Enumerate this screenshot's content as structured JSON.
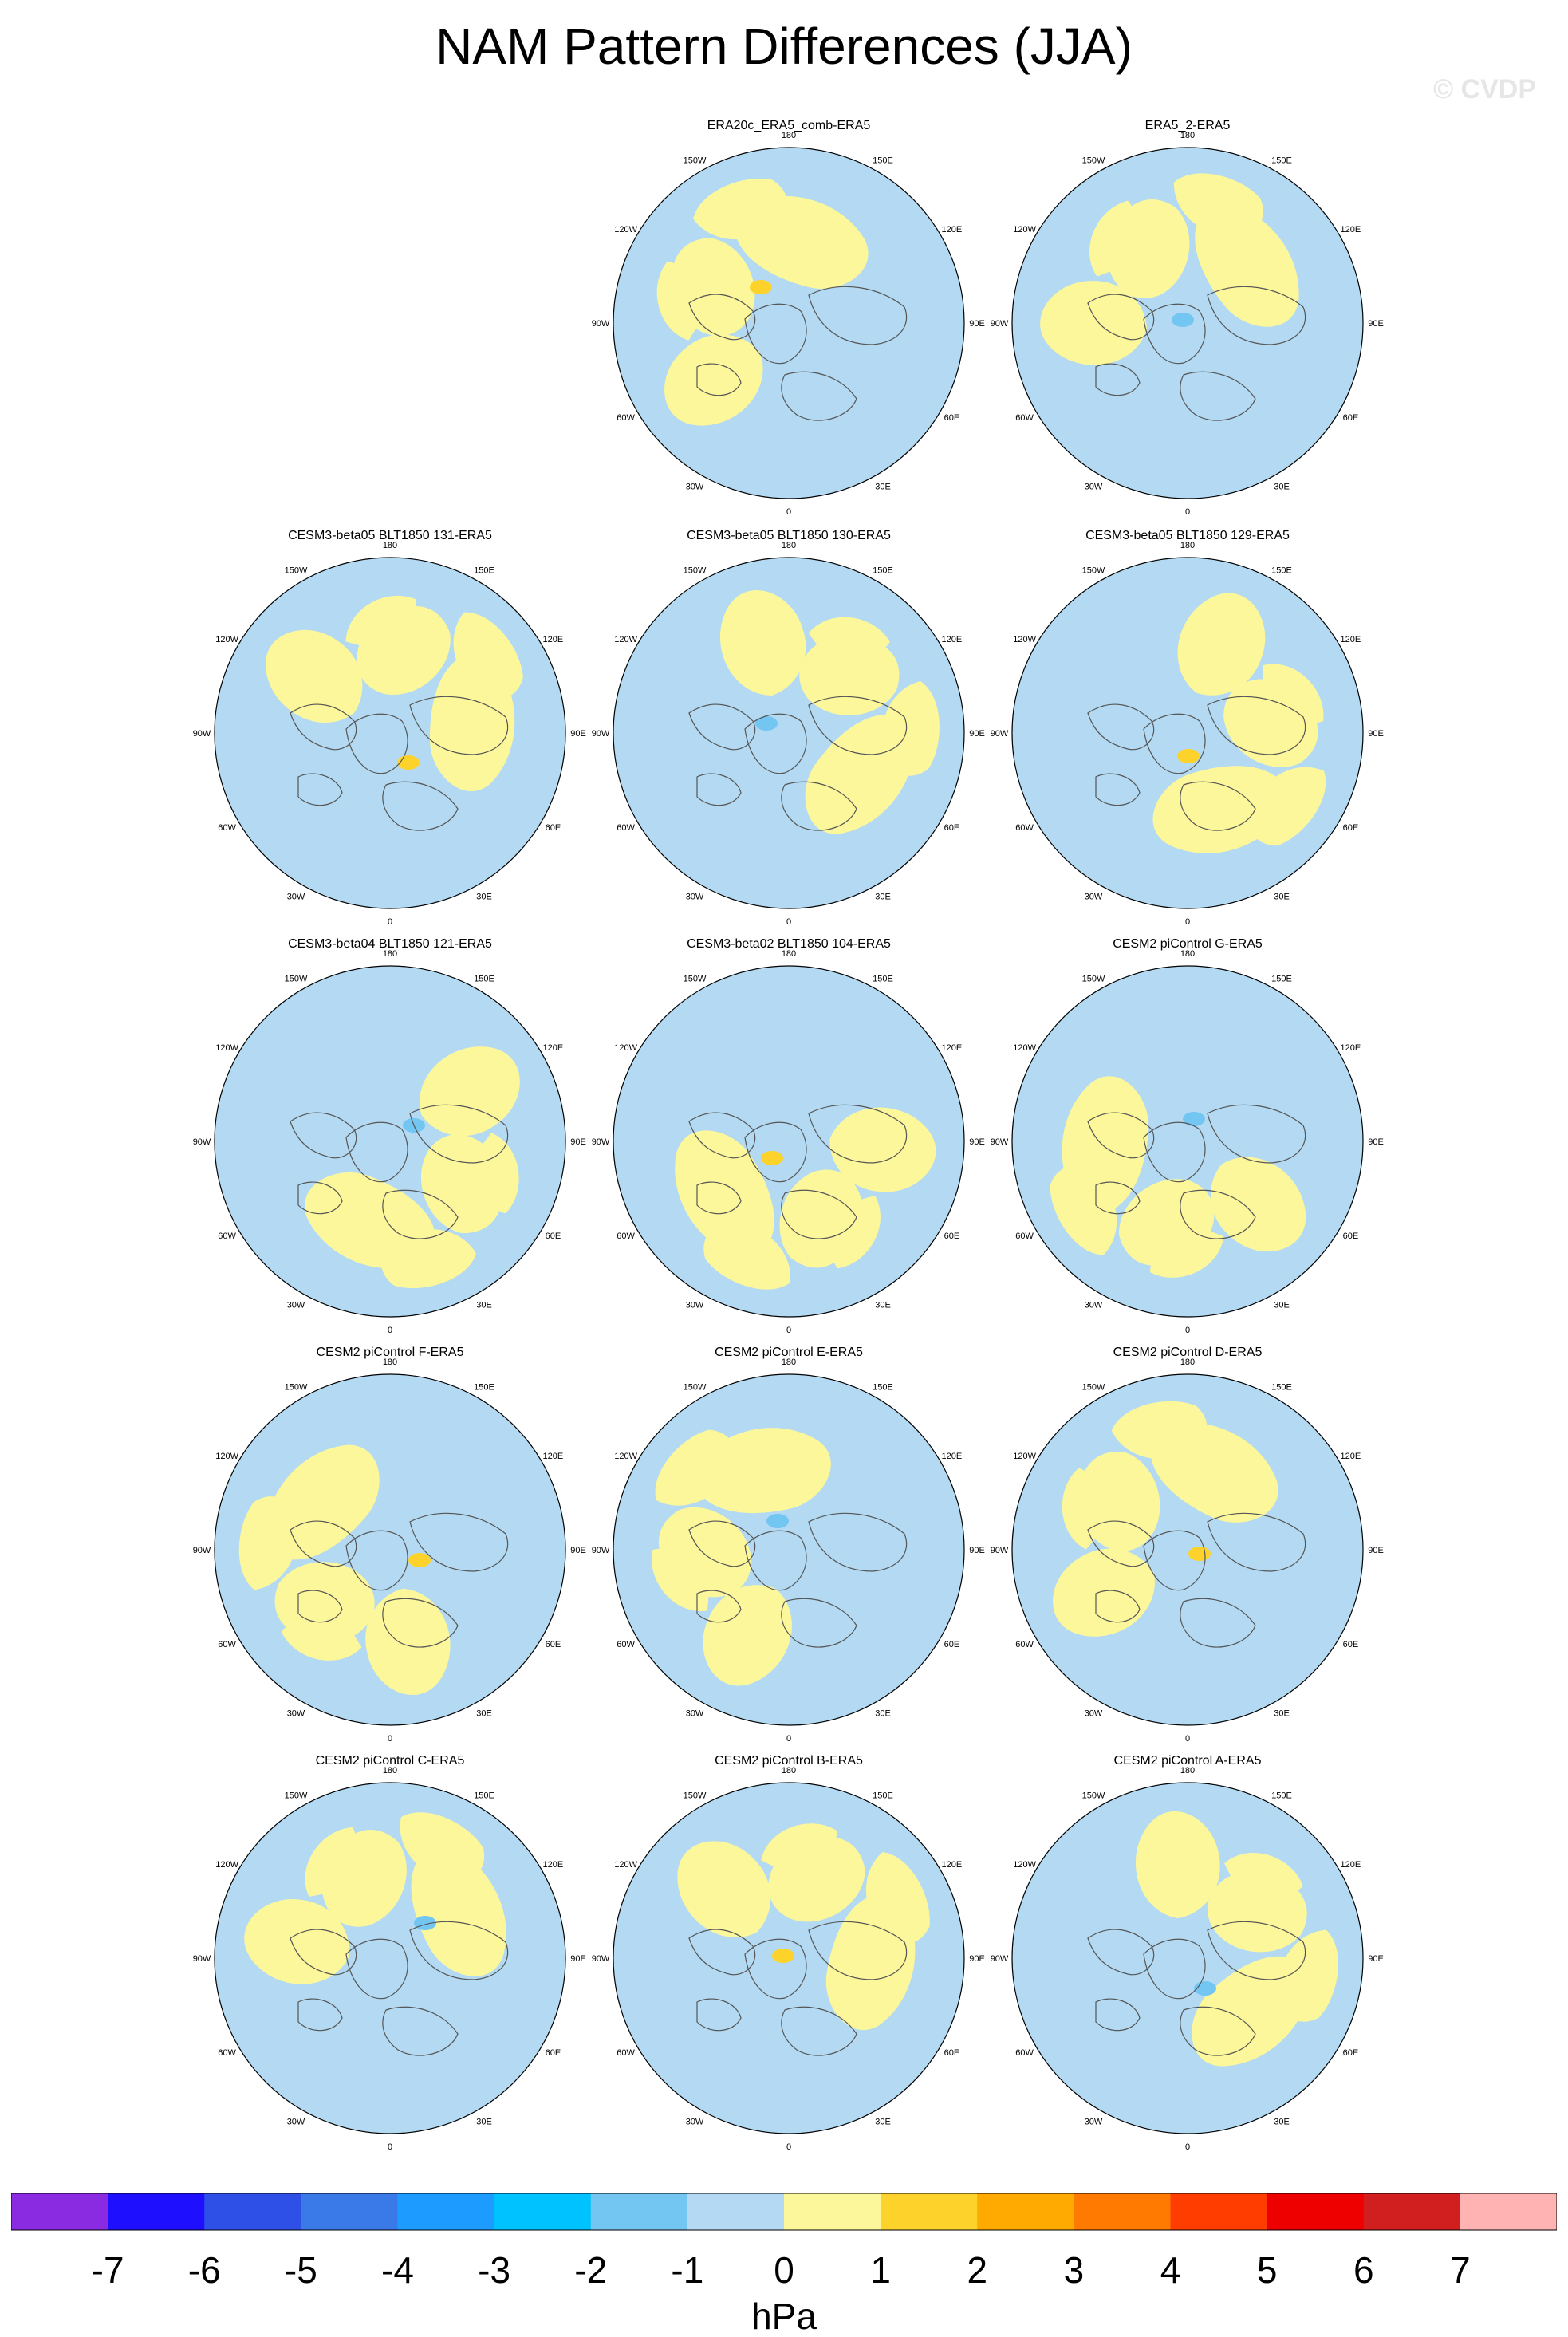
{
  "title": "NAM Pattern Differences (JJA)",
  "watermark": "© CVDP",
  "units": "hPa",
  "colors": {
    "ocean_negative": "#b3daf2",
    "land_positive": "#fdf79b",
    "coast": "#555555",
    "pos_level_1": "#fdd32b",
    "pos_level_2": "#ffaa00",
    "neg_level_2": "#73c5f2",
    "neg_level_3": "#00bfff"
  },
  "lon_labels": [
    "180",
    "150E",
    "120E",
    "90E",
    "60E",
    "30E",
    "0",
    "30W",
    "60W",
    "90W",
    "120W",
    "150W"
  ],
  "panels": [
    {
      "title": "ERA20c_ERA5_comb-ERA5"
    },
    {
      "title": "ERA5_2-ERA5"
    },
    {
      "title": "CESM3-beta05 BLT1850 131-ERA5"
    },
    {
      "title": "CESM3-beta05 BLT1850 130-ERA5"
    },
    {
      "title": "CESM3-beta05 BLT1850 129-ERA5"
    },
    {
      "title": "CESM3-beta04 BLT1850 121-ERA5"
    },
    {
      "title": "CESM3-beta02 BLT1850 104-ERA5"
    },
    {
      "title": "CESM2 piControl G-ERA5"
    },
    {
      "title": "CESM2 piControl F-ERA5"
    },
    {
      "title": "CESM2 piControl E-ERA5"
    },
    {
      "title": "CESM2 piControl D-ERA5"
    },
    {
      "title": "CESM2 piControl C-ERA5"
    },
    {
      "title": "CESM2 piControl B-ERA5"
    },
    {
      "title": "CESM2 piControl A-ERA5"
    }
  ],
  "colorbar": {
    "labels": [
      "-7",
      "-6",
      "-5",
      "-4",
      "-3",
      "-2",
      "-1",
      "0",
      "1",
      "2",
      "3",
      "4",
      "5",
      "6",
      "7"
    ],
    "colors": [
      "#8a2be2",
      "#1e0fff",
      "#2f50e6",
      "#3a7ae8",
      "#1e9bff",
      "#00c2ff",
      "#73c5f2",
      "#b3daf2",
      "#fdf79b",
      "#fdd32b",
      "#ffaa00",
      "#ff7a00",
      "#ff3d00",
      "#ee0000",
      "#d11f1f",
      "#ffb3b3"
    ]
  }
}
